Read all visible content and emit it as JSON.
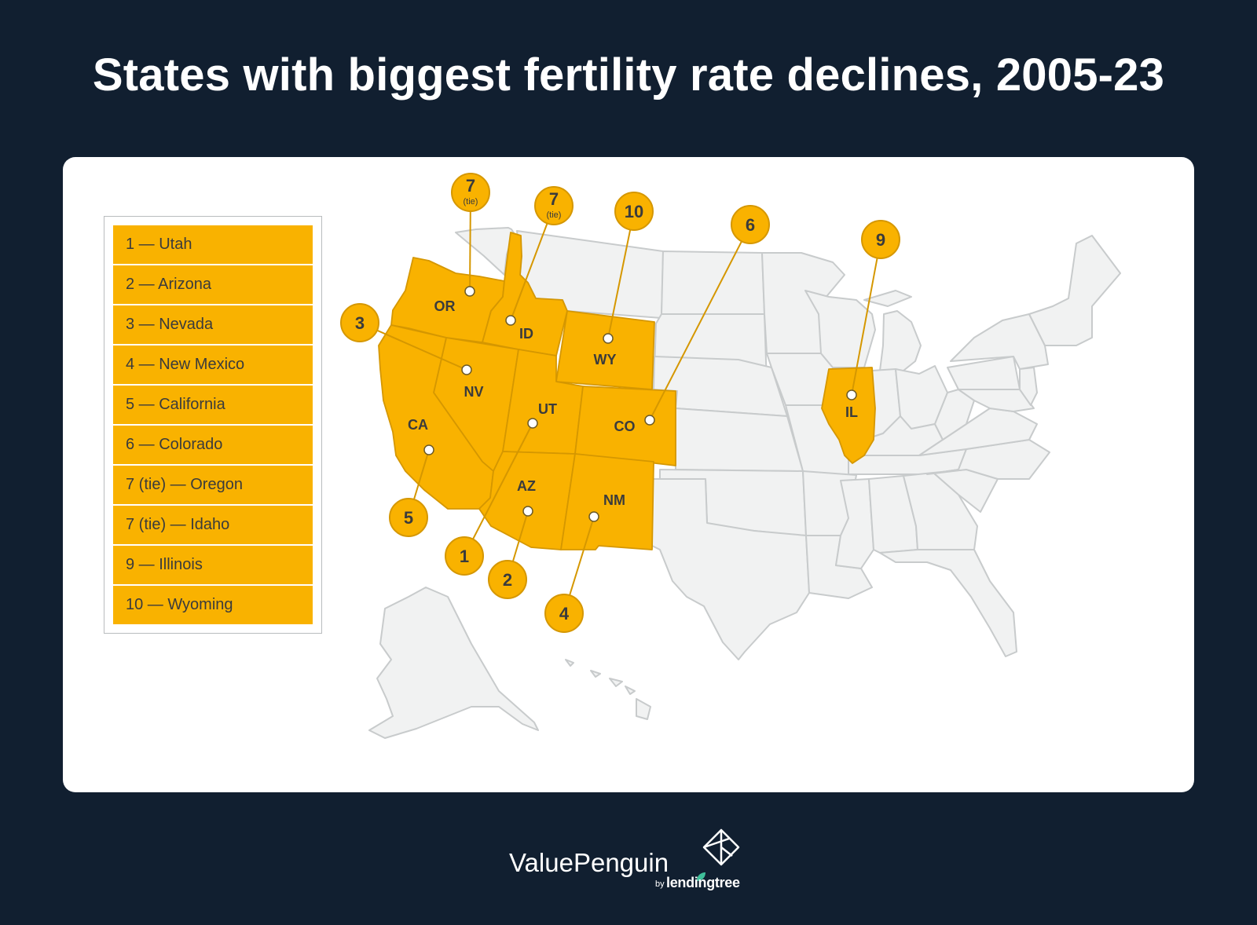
{
  "title": "States with biggest fertility rate declines, 2005-23",
  "colors": {
    "highlight": "#f9b200",
    "highlight_stroke": "#d59700",
    "base_state": "#f1f2f2",
    "state_border": "#c8cbcc",
    "background": "#111f30",
    "text": "#3a3b3c"
  },
  "legend": [
    "1 — Utah",
    "2 — Arizona",
    "3 — Nevada",
    "4 — New Mexico",
    "5 — California",
    "6 — Colorado",
    "7 (tie) — Oregon",
    "7 (tie) — Idaho",
    "9 — Illinois",
    "10 — Wyoming"
  ],
  "highlighted_states": [
    {
      "abbr": "UT",
      "rank": "1"
    },
    {
      "abbr": "AZ",
      "rank": "2"
    },
    {
      "abbr": "NV",
      "rank": "3"
    },
    {
      "abbr": "NM",
      "rank": "4"
    },
    {
      "abbr": "CA",
      "rank": "5"
    },
    {
      "abbr": "CO",
      "rank": "6"
    },
    {
      "abbr": "OR",
      "rank": "7",
      "note": "(tie)"
    },
    {
      "abbr": "ID",
      "rank": "7",
      "note": "(tie)"
    },
    {
      "abbr": "IL",
      "rank": "9"
    },
    {
      "abbr": "WY",
      "rank": "10"
    }
  ],
  "footer": {
    "brand": "ValuePenguin",
    "by": "by",
    "parent": "lendingtree"
  },
  "icons": {
    "brand_mark": "valuepenguin-logo-icon",
    "leaf": "leaf-icon"
  }
}
